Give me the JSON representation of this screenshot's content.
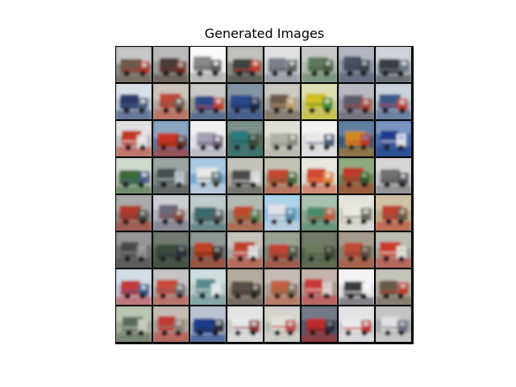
{
  "title": "Generated Images",
  "grid": {
    "rows": 8,
    "cols": 8,
    "description": "Samples of generated truck images",
    "tiles": [
      {
        "bg": "#8c8c8c",
        "mid": "#6a5a4a",
        "fg": "#b33a2a",
        "acc": "#e0e0e0"
      },
      {
        "bg": "#9a9a95",
        "mid": "#4a3e38",
        "fg": "#7a2a22",
        "acc": "#c8c8c8"
      },
      {
        "bg": "#f0f0f0",
        "mid": "#888888",
        "fg": "#5a5a5a",
        "acc": "#ffffff"
      },
      {
        "bg": "#8a8a80",
        "mid": "#3a4040",
        "fg": "#c04030",
        "acc": "#d8d8d8"
      },
      {
        "bg": "#c8ccd0",
        "mid": "#7a8088",
        "fg": "#5a6060",
        "acc": "#e8e8e8"
      },
      {
        "bg": "#b0b8b0",
        "mid": "#5a7a5a",
        "fg": "#4a5a4a",
        "acc": "#d0d0d0"
      },
      {
        "bg": "#9098a8",
        "mid": "#4a5060",
        "fg": "#383c48",
        "acc": "#c0c4cc"
      },
      {
        "bg": "#a8b0b8",
        "mid": "#3a3e44",
        "fg": "#707880",
        "acc": "#e0e4e8"
      },
      {
        "bg": "#b8c0d0",
        "mid": "#2a3a6a",
        "fg": "#506080",
        "acc": "#e8ecf0"
      },
      {
        "bg": "#b0a8a0",
        "mid": "#c04a3a",
        "fg": "#6a5a50",
        "acc": "#d8d0c8"
      },
      {
        "bg": "#989890",
        "mid": "#2a4a8a",
        "fg": "#c04030",
        "acc": "#e0e0e0"
      },
      {
        "bg": "#6a7888",
        "mid": "#2a4a8a",
        "fg": "#1a2a4a",
        "acc": "#90a0b0"
      },
      {
        "bg": "#a8a8a0",
        "mid": "#6a5a48",
        "fg": "#c0a070",
        "acc": "#d8d8d0"
      },
      {
        "bg": "#c0c890",
        "mid": "#d0c020",
        "fg": "#4a8a3a",
        "acc": "#e8e8c0"
      },
      {
        "bg": "#9898a0",
        "mid": "#5a5a68",
        "fg": "#b04a3a",
        "acc": "#c8c8d0"
      },
      {
        "bg": "#a8b0b8",
        "mid": "#3a5a8a",
        "fg": "#c04a3a",
        "acc": "#d8e0e8"
      },
      {
        "bg": "#c0c0c0",
        "mid": "#c03828",
        "fg": "#e0e0e0",
        "acc": "#f0f0f0"
      },
      {
        "bg": "#5a7aa0",
        "mid": "#c83020",
        "fg": "#6a3020",
        "acc": "#a0b8d0"
      },
      {
        "bg": "#e0e0e8",
        "mid": "#a0a0b0",
        "fg": "#6a5a70",
        "acc": "#f8f8f8"
      },
      {
        "bg": "#5a6a5a",
        "mid": "#2a7a7a",
        "fg": "#3a4a3a",
        "acc": "#8aa0a0"
      },
      {
        "bg": "#c8c8c0",
        "mid": "#b0b0a8",
        "fg": "#8a8a80",
        "acc": "#e8e8e0"
      },
      {
        "bg": "#d8d8d8",
        "mid": "#e8e8e8",
        "fg": "#4a5a70",
        "acc": "#ffffff"
      },
      {
        "bg": "#3a5a80",
        "mid": "#d08a20",
        "fg": "#c03a2a",
        "acc": "#7090b0"
      },
      {
        "bg": "#4a6aa0",
        "mid": "#1a3a8a",
        "fg": "#e0e0e8",
        "acc": "#90a8d0"
      },
      {
        "bg": "#b0b8a8",
        "mid": "#3a6a3a",
        "fg": "#4a5a8a",
        "acc": "#e0e8e0"
      },
      {
        "bg": "#808888",
        "mid": "#4a5050",
        "fg": "#c0c8d0",
        "acc": "#a8b0b0"
      },
      {
        "bg": "#78a8d0",
        "mid": "#e8e8e8",
        "fg": "#5a6a70",
        "acc": "#c0d8e8"
      },
      {
        "bg": "#a8a8a0",
        "mid": "#4a4a48",
        "fg": "#e0e0e0",
        "acc": "#d0d0c8"
      },
      {
        "bg": "#a8a898",
        "mid": "#c04a30",
        "fg": "#4a6a3a",
        "acc": "#d0d0c0"
      },
      {
        "bg": "#d8d8d0",
        "mid": "#d04a30",
        "fg": "#e08a40",
        "acc": "#f0f0e8"
      },
      {
        "bg": "#6a8a5a",
        "mid": "#c03a2a",
        "fg": "#3a5a2a",
        "acc": "#a0b890"
      },
      {
        "bg": "#c0c0c0",
        "mid": "#707070",
        "fg": "#505058",
        "acc": "#e0e0e0"
      },
      {
        "bg": "#8a8a88",
        "mid": "#b03a2a",
        "fg": "#4a4a48",
        "acc": "#b8b8b8"
      },
      {
        "bg": "#b0b0b8",
        "mid": "#6a6a78",
        "fg": "#8a4a3a",
        "acc": "#d8d8e0"
      },
      {
        "bg": "#a0b0b0",
        "mid": "#3a6a6a",
        "fg": "#5a5a58",
        "acc": "#c8d8d8"
      },
      {
        "bg": "#909890",
        "mid": "#c04a2a",
        "fg": "#5a7a4a",
        "acc": "#c0c8c0"
      },
      {
        "bg": "#80b8d8",
        "mid": "#e0e0e8",
        "fg": "#5a8aa8",
        "acc": "#c0e0f0"
      },
      {
        "bg": "#88a090",
        "mid": "#4a8a6a",
        "fg": "#c05a3a",
        "acc": "#b8d0c0"
      },
      {
        "bg": "#c8c8c0",
        "mid": "#e8e8e0",
        "fg": "#6a6a60",
        "acc": "#f0f0e8"
      },
      {
        "bg": "#b8a888",
        "mid": "#c04030",
        "fg": "#6a5a4a",
        "acc": "#d8ccb0"
      },
      {
        "bg": "#707070",
        "mid": "#4a4a4a",
        "fg": "#909090",
        "acc": "#a8a8a8"
      },
      {
        "bg": "#505850",
        "mid": "#3a4a3a",
        "fg": "#2a3040",
        "acc": "#808880"
      },
      {
        "bg": "#6a7070",
        "mid": "#c04020",
        "fg": "#3a2a20",
        "acc": "#a0a8a8"
      },
      {
        "bg": "#a8a8a0",
        "mid": "#c03a2a",
        "fg": "#e0e0e0",
        "acc": "#d0d0c8"
      },
      {
        "bg": "#7a8070",
        "mid": "#c04030",
        "fg": "#4a5040",
        "acc": "#a8b0a0"
      },
      {
        "bg": "#505848",
        "mid": "#6a7a5a",
        "fg": "#3a4030",
        "acc": "#808878"
      },
      {
        "bg": "#8a8070",
        "mid": "#c04a30",
        "fg": "#5a4a3a",
        "acc": "#b0a898"
      },
      {
        "bg": "#a0a098",
        "mid": "#c83a2a",
        "fg": "#e0e0d8",
        "acc": "#c8c8c0"
      },
      {
        "bg": "#b8c0d0",
        "mid": "#c03a3a",
        "fg": "#3a5a8a",
        "acc": "#e0e8f0"
      },
      {
        "bg": "#a8a8a8",
        "mid": "#c84a3a",
        "fg": "#6a6a6a",
        "acc": "#d0d0d0"
      },
      {
        "bg": "#b8c8c8",
        "mid": "#5a8a8a",
        "fg": "#e0e8e8",
        "acc": "#d8e8e8"
      },
      {
        "bg": "#989080",
        "mid": "#5a5048",
        "fg": "#3a3a38",
        "acc": "#c0b8a8"
      },
      {
        "bg": "#a8a098",
        "mid": "#c06040",
        "fg": "#7a6a5a",
        "acc": "#d0c8c0"
      },
      {
        "bg": "#a89890",
        "mid": "#c83a3a",
        "fg": "#e0d0c8",
        "acc": "#d0c0b8"
      },
      {
        "bg": "#d8d8e0",
        "mid": "#3a3a40",
        "fg": "#f0f0f0",
        "acc": "#ffffff"
      },
      {
        "bg": "#a8a8a0",
        "mid": "#6a5a48",
        "fg": "#c04030",
        "acc": "#d0d0c8"
      },
      {
        "bg": "#a0a898",
        "mid": "#5a6a5a",
        "fg": "#c8c8c0",
        "acc": "#c8d0c0"
      },
      {
        "bg": "#a8a098",
        "mid": "#c03a30",
        "fg": "#8a8078",
        "acc": "#d0c8c0"
      },
      {
        "bg": "#a0a8b8",
        "mid": "#1a3a8a",
        "fg": "#2a2a3a",
        "acc": "#c8d0e0"
      },
      {
        "bg": "#c8c8c8",
        "mid": "#e8e8e8",
        "fg": "#8a3a3a",
        "acc": "#f0f0f0"
      },
      {
        "bg": "#b8b8b0",
        "mid": "#e0e0d8",
        "fg": "#c04a4a",
        "acc": "#e0e0d8"
      },
      {
        "bg": "#505868",
        "mid": "#c02a2a",
        "fg": "#2a2a38",
        "acc": "#808898"
      },
      {
        "bg": "#c8c8d0",
        "mid": "#e8e8e8",
        "fg": "#c03a3a",
        "acc": "#f0f0f0"
      },
      {
        "bg": "#a8a8a8",
        "mid": "#e0e0e0",
        "fg": "#6a7080",
        "acc": "#d0d0d0"
      }
    ]
  }
}
